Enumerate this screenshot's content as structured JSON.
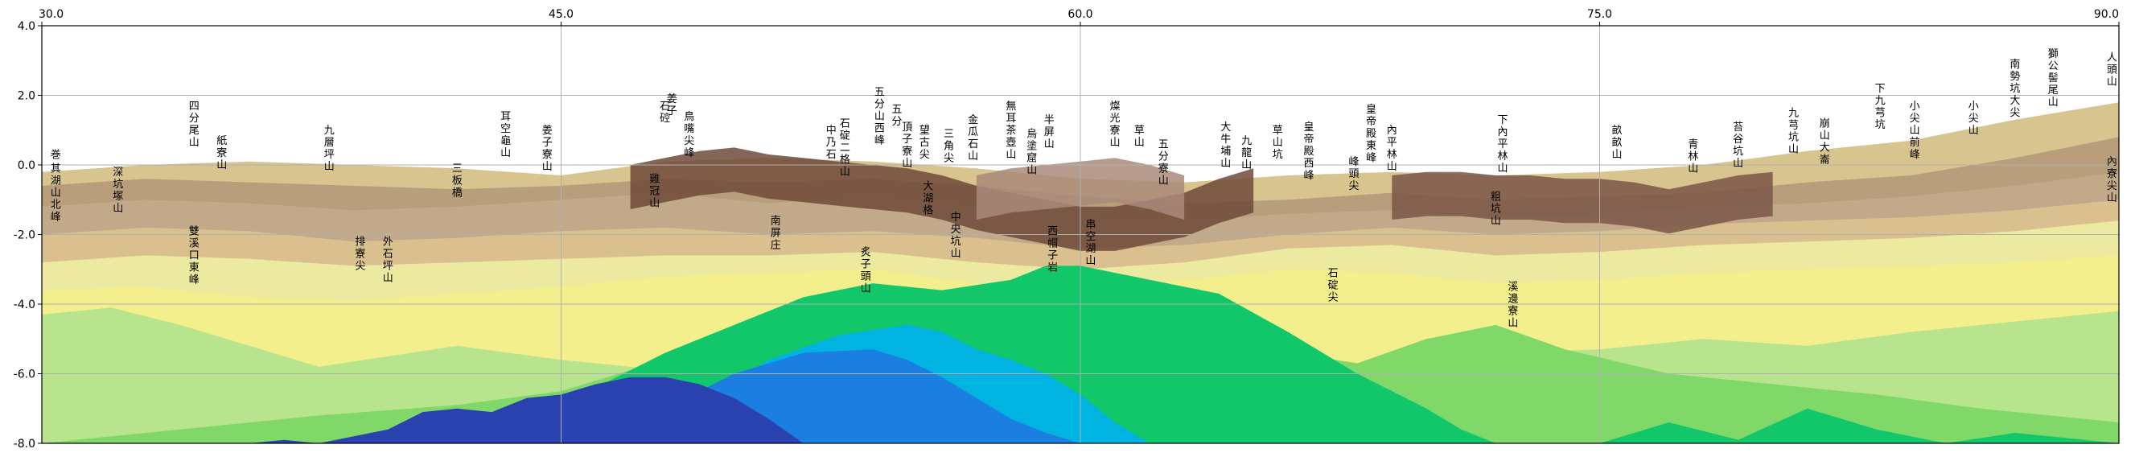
{
  "chart_data": {
    "type": "area",
    "title": "",
    "xlabel": "",
    "ylabel": "",
    "xlim": [
      30.0,
      90.0
    ],
    "ylim": [
      -8.0,
      4.0
    ],
    "xticks": [
      30.0,
      45.0,
      60.0,
      75.0,
      90.0
    ],
    "yticks": [
      4.0,
      2.0,
      0.0,
      -2.0,
      -4.0,
      -6.0,
      -8.0
    ],
    "xtick_labels": [
      "30.0",
      "45.0",
      "60.0",
      "75.0",
      "90.0"
    ],
    "ytick_labels": [
      "4.0",
      "2.0",
      "0.0",
      "-2.0",
      "-4.0",
      "-6.0",
      "-8.0"
    ],
    "grid": true,
    "layers": [
      {
        "color": "#d8c48e",
        "x": [
          30,
          33,
          36,
          39,
          42,
          45,
          48,
          51,
          54,
          57,
          60,
          63,
          66,
          69,
          72,
          75,
          78,
          81,
          84,
          87,
          90
        ],
        "y": [
          -0.2,
          0.0,
          0.1,
          0.0,
          -0.1,
          -0.3,
          0.1,
          0.2,
          0.1,
          -0.1,
          -0.4,
          -0.5,
          -0.3,
          -0.2,
          -0.3,
          -0.2,
          0.0,
          0.4,
          0.7,
          1.3,
          1.8
        ]
      },
      {
        "color": "#b89e7a",
        "x": [
          30,
          33,
          36,
          39,
          42,
          45,
          48,
          51,
          54,
          57,
          60,
          63,
          66,
          69,
          72,
          75,
          78,
          81,
          84,
          87,
          90
        ],
        "y": [
          -0.6,
          -0.4,
          -0.5,
          -0.6,
          -0.7,
          -0.6,
          -0.4,
          -0.5,
          -0.4,
          -0.6,
          -0.9,
          -1.1,
          -1.0,
          -0.8,
          -1.0,
          -0.9,
          -0.8,
          -0.5,
          -0.3,
          0.2,
          0.8
        ]
      },
      {
        "color": "#c2a98a",
        "x": [
          30,
          33,
          36,
          39,
          42,
          45,
          48,
          51,
          54,
          57,
          60,
          63,
          66,
          69,
          72,
          75,
          78,
          81,
          84,
          87,
          90
        ],
        "y": [
          -1.2,
          -1.0,
          -1.1,
          -1.3,
          -1.2,
          -1.0,
          -0.8,
          -1.1,
          -0.9,
          -1.2,
          -1.5,
          -1.6,
          -1.4,
          -1.3,
          -1.5,
          -1.4,
          -1.2,
          -1.1,
          -0.9,
          -0.6,
          -0.2
        ]
      },
      {
        "color": "#d9c08e",
        "x": [
          30,
          33,
          36,
          39,
          42,
          45,
          48,
          51,
          54,
          57,
          60,
          63,
          66,
          69,
          72,
          75,
          78,
          81,
          84,
          87,
          90
        ],
        "y": [
          -2.0,
          -1.8,
          -1.9,
          -2.2,
          -2.1,
          -1.9,
          -1.8,
          -2.0,
          -1.9,
          -2.1,
          -2.4,
          -2.3,
          -2.0,
          -1.8,
          -2.0,
          -1.9,
          -1.7,
          -1.6,
          -1.5,
          -1.3,
          -1.0
        ]
      },
      {
        "color": "#ece9a0",
        "x": [
          30,
          33,
          36,
          39,
          42,
          45,
          48,
          51,
          54,
          57,
          60,
          63,
          66,
          69,
          72,
          75,
          78,
          81,
          84,
          87,
          90
        ],
        "y": [
          -2.8,
          -2.6,
          -2.7,
          -2.9,
          -2.8,
          -2.7,
          -2.6,
          -2.6,
          -2.5,
          -2.8,
          -3.0,
          -2.8,
          -2.4,
          -2.3,
          -2.6,
          -2.5,
          -2.3,
          -2.2,
          -2.1,
          -1.9,
          -1.6
        ]
      },
      {
        "color": "#f3ef8c",
        "x": [
          30,
          33,
          36,
          39,
          42,
          45,
          48,
          51,
          54,
          57,
          60,
          63,
          66,
          69,
          72,
          75,
          78,
          81,
          84,
          87,
          90
        ],
        "y": [
          -3.6,
          -3.5,
          -3.8,
          -3.9,
          -3.7,
          -3.5,
          -3.2,
          -3.1,
          -3.0,
          -3.4,
          -3.6,
          -3.3,
          -3.0,
          -3.1,
          -3.4,
          -3.3,
          -3.1,
          -3.0,
          -2.9,
          -2.8,
          -2.6
        ]
      },
      {
        "color": "#b7e48c",
        "x": [
          30,
          32,
          34,
          36,
          38,
          40,
          42,
          45,
          48,
          51,
          54,
          57,
          60,
          63,
          66,
          69,
          72,
          75,
          78,
          81,
          84,
          87,
          90
        ],
        "y": [
          -4.3,
          -4.1,
          -4.6,
          -5.2,
          -5.8,
          -5.5,
          -5.2,
          -5.6,
          -5.9,
          -5.3,
          -4.9,
          -5.4,
          -5.7,
          -5.5,
          -5.6,
          -5.9,
          -5.4,
          -5.3,
          -5.0,
          -5.2,
          -4.8,
          -4.5,
          -4.2
        ]
      },
      {
        "color": "#7fd868",
        "x": [
          30,
          34,
          38,
          42,
          45,
          48,
          50,
          52,
          55,
          58,
          60,
          62,
          64,
          66,
          68,
          70,
          72,
          74,
          77,
          80,
          83,
          86,
          88,
          90
        ],
        "y": [
          -8.0,
          -7.6,
          -7.2,
          -6.9,
          -6.5,
          -5.6,
          -4.8,
          -4.2,
          -4.6,
          -4.3,
          -4.0,
          -4.4,
          -4.9,
          -5.4,
          -5.7,
          -5.0,
          -4.6,
          -5.3,
          -6.0,
          -6.3,
          -6.6,
          -7.0,
          -7.2,
          -7.4
        ]
      },
      {
        "color": "#12c76a",
        "x": [
          42,
          44,
          46,
          48,
          50,
          52,
          54,
          56,
          58,
          59,
          60,
          62,
          64,
          66,
          68,
          70,
          71,
          72,
          73,
          75,
          77,
          79,
          81,
          83,
          85,
          87,
          90
        ],
        "y": [
          -8.0,
          -7.2,
          -6.4,
          -5.4,
          -4.6,
          -3.8,
          -3.4,
          -3.6,
          -3.3,
          -2.9,
          -2.9,
          -3.3,
          -3.7,
          -4.8,
          -6.0,
          -7.0,
          -7.6,
          -8.0,
          -8.0,
          -8.0,
          -7.4,
          -7.9,
          -7.0,
          -7.6,
          -8.0,
          -7.7,
          -8.0
        ]
      },
      {
        "color": "#00b3e0",
        "x": [
          47,
          49,
          51,
          53,
          55,
          56,
          57,
          58,
          59,
          60,
          61,
          62
        ],
        "y": [
          -8.0,
          -6.8,
          -5.6,
          -4.9,
          -4.6,
          -4.8,
          -5.3,
          -5.6,
          -6.0,
          -6.6,
          -7.4,
          -8.0
        ]
      },
      {
        "color": "#1a7fe0",
        "x": [
          46,
          48,
          50,
          52,
          54,
          55,
          56,
          57,
          58,
          59,
          60
        ],
        "y": [
          -8.0,
          -7.0,
          -6.0,
          -5.4,
          -5.3,
          -5.6,
          -6.1,
          -6.7,
          -7.3,
          -7.7,
          -8.0
        ]
      },
      {
        "color": "#2a42b0",
        "x": [
          36,
          37,
          38,
          40,
          41,
          42,
          43,
          44,
          45,
          46,
          47,
          48,
          49,
          50,
          51,
          52
        ],
        "y": [
          -8.0,
          -7.9,
          -8.0,
          -7.6,
          -7.1,
          -7.0,
          -7.1,
          -6.7,
          -6.6,
          -6.3,
          -6.1,
          -6.1,
          -6.3,
          -6.7,
          -7.3,
          -8.0
        ]
      }
    ],
    "ridge_layers": [
      {
        "color": "#6e4a3a",
        "x": [
          47,
          48,
          49,
          50,
          51,
          52,
          53,
          54,
          55,
          56,
          57,
          58,
          59,
          60,
          61,
          62,
          63,
          64,
          65
        ],
        "y": [
          0.0,
          0.2,
          0.4,
          0.5,
          0.3,
          0.2,
          0.1,
          0.0,
          -0.1,
          -0.3,
          -0.6,
          -0.8,
          -1.0,
          -1.2,
          -1.2,
          -1.0,
          -0.8,
          -0.4,
          -0.1
        ]
      },
      {
        "color": "#7a5648",
        "x": [
          69,
          70,
          71,
          72,
          73,
          74,
          75,
          76,
          77,
          78,
          79,
          80
        ],
        "y": [
          -0.3,
          -0.2,
          -0.2,
          -0.3,
          -0.3,
          -0.4,
          -0.4,
          -0.5,
          -0.7,
          -0.5,
          -0.3,
          -0.2
        ]
      },
      {
        "color": "#a98a7a",
        "x": [
          57,
          58,
          59,
          60,
          61,
          62,
          63
        ],
        "y": [
          -0.3,
          -0.1,
          0.0,
          0.1,
          0.2,
          0.0,
          -0.3
        ]
      }
    ],
    "annotations": [
      {
        "x": 30.4,
        "y": 0.2,
        "text": "巻"
      },
      {
        "x": 30.4,
        "y": -0.2,
        "text": "其湖山北峰"
      },
      {
        "x": 32.2,
        "y": -0.3,
        "text": "深坑塚山"
      },
      {
        "x": 34.4,
        "y": 1.6,
        "text": "四分尾山"
      },
      {
        "x": 35.2,
        "y": 0.6,
        "text": "紙寮山"
      },
      {
        "x": 34.4,
        "y": -2.0,
        "text": "雙溪口東峰"
      },
      {
        "x": 38.3,
        "y": 0.9,
        "text": "九層坪山"
      },
      {
        "x": 39.2,
        "y": -2.3,
        "text": "排寮尖"
      },
      {
        "x": 40.0,
        "y": -2.3,
        "text": "外石坪山"
      },
      {
        "x": 42.0,
        "y": -0.2,
        "text": "三板橋"
      },
      {
        "x": 43.4,
        "y": 1.3,
        "text": "耳空龜山"
      },
      {
        "x": 44.6,
        "y": 0.9,
        "text": "姜子寮山"
      },
      {
        "x": 48.2,
        "y": 1.8,
        "text": "姜子"
      },
      {
        "x": 48.0,
        "y": 1.6,
        "text": "石硿"
      },
      {
        "x": 48.7,
        "y": 1.3,
        "text": "鳥嘴尖峰"
      },
      {
        "x": 47.7,
        "y": -0.5,
        "text": "雞冠山"
      },
      {
        "x": 51.2,
        "y": -1.7,
        "text": "南屏庄"
      },
      {
        "x": 52.8,
        "y": 0.9,
        "text": "中乃石"
      },
      {
        "x": 53.2,
        "y": 1.1,
        "text": "石碇二格山"
      },
      {
        "x": 53.8,
        "y": -2.6,
        "text": "炙子頭山"
      },
      {
        "x": 54.2,
        "y": 2.0,
        "text": "五分山西峰"
      },
      {
        "x": 54.7,
        "y": 1.5,
        "text": "五分"
      },
      {
        "x": 55.0,
        "y": 1.0,
        "text": "頂子寮山"
      },
      {
        "x": 55.5,
        "y": 0.9,
        "text": "望古尖"
      },
      {
        "x": 55.6,
        "y": -0.7,
        "text": "大湖格"
      },
      {
        "x": 56.2,
        "y": 0.8,
        "text": "三角尖"
      },
      {
        "x": 56.4,
        "y": -1.6,
        "text": "中央坑山"
      },
      {
        "x": 56.9,
        "y": 1.2,
        "text": "金瓜石山"
      },
      {
        "x": 58.0,
        "y": 1.6,
        "text": "無耳茶壺山"
      },
      {
        "x": 58.6,
        "y": 0.8,
        "text": "烏塗窟山"
      },
      {
        "x": 59.1,
        "y": 1.2,
        "text": "半屏山"
      },
      {
        "x": 59.2,
        "y": -2.0,
        "text": "西帽子岩"
      },
      {
        "x": 60.3,
        "y": -1.8,
        "text": "串空湖山"
      },
      {
        "x": 61.0,
        "y": 1.6,
        "text": "燦光寮山"
      },
      {
        "x": 61.7,
        "y": 0.9,
        "text": "草山"
      },
      {
        "x": 62.4,
        "y": 0.5,
        "text": "五分寮山"
      },
      {
        "x": 64.2,
        "y": 1.0,
        "text": "大牛埔山"
      },
      {
        "x": 64.8,
        "y": 0.6,
        "text": "九龍山"
      },
      {
        "x": 65.7,
        "y": 0.9,
        "text": "草山坑"
      },
      {
        "x": 66.6,
        "y": 1.0,
        "text": "皇帝殿西峰"
      },
      {
        "x": 67.3,
        "y": -3.2,
        "text": "石碇尖"
      },
      {
        "x": 67.9,
        "y": 0.0,
        "text": "峰頭尖"
      },
      {
        "x": 68.4,
        "y": 1.5,
        "text": "皇帝殿東峰"
      },
      {
        "x": 69.0,
        "y": 0.9,
        "text": "內平林山"
      },
      {
        "x": 72.2,
        "y": 1.2,
        "text": "下內平林山"
      },
      {
        "x": 72.0,
        "y": -1.0,
        "text": "粗坑山"
      },
      {
        "x": 72.5,
        "y": -3.6,
        "text": "溪邊寮山"
      },
      {
        "x": 75.5,
        "y": 0.9,
        "text": "畝畝山"
      },
      {
        "x": 77.7,
        "y": 0.5,
        "text": "青林山"
      },
      {
        "x": 79.0,
        "y": 1.0,
        "text": "苔谷坑山"
      },
      {
        "x": 80.6,
        "y": 1.4,
        "text": "九芎坑山"
      },
      {
        "x": 81.5,
        "y": 1.1,
        "text": "崩山大崙"
      },
      {
        "x": 83.1,
        "y": 2.1,
        "text": "下九芎坑"
      },
      {
        "x": 84.1,
        "y": 1.6,
        "text": "小尖山前峰"
      },
      {
        "x": 85.8,
        "y": 1.6,
        "text": "小尖山"
      },
      {
        "x": 87.0,
        "y": 2.8,
        "text": "南勢坑大尖"
      },
      {
        "x": 88.1,
        "y": 3.1,
        "text": "獅公髻尾山"
      },
      {
        "x": 89.8,
        "y": 3.0,
        "text": "人頭山"
      },
      {
        "x": 89.8,
        "y": -0.0,
        "text": "內寮尖山"
      }
    ]
  },
  "palette": {
    "axis": "#000000",
    "grid": "#b0b0b0",
    "background": "#ffffff"
  }
}
